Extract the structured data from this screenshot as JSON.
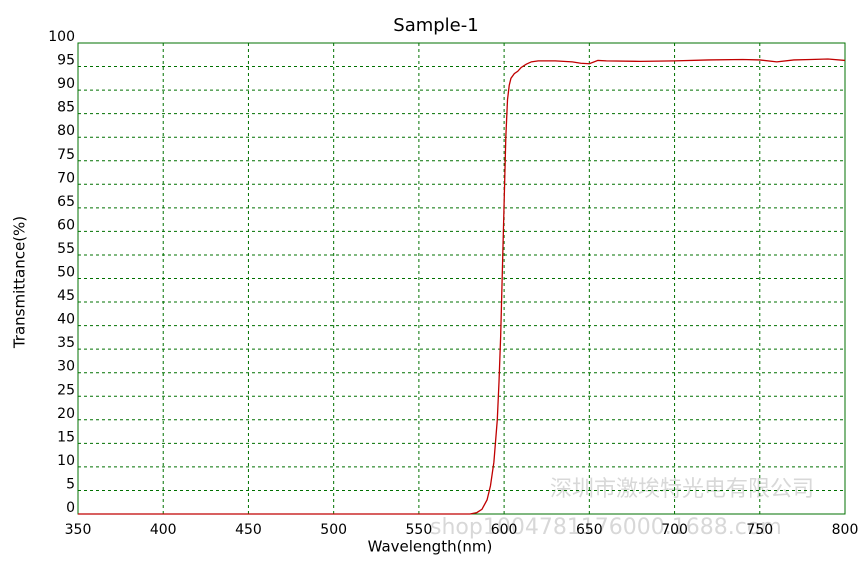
{
  "chart_data": {
    "type": "line",
    "title": "Sample-1",
    "x_label": "Wavelength(nm)",
    "y_label": "Transmittance(%)",
    "x": [
      350,
      400,
      450,
      500,
      550,
      580,
      584,
      587,
      590,
      592,
      594,
      596,
      597,
      598,
      599,
      600,
      601,
      602,
      603,
      604,
      606,
      608,
      610,
      613,
      616,
      620,
      630,
      640,
      645,
      650,
      655,
      660,
      680,
      700,
      720,
      740,
      750,
      760,
      770,
      780,
      790,
      800
    ],
    "series": [
      {
        "name": "Sample-1",
        "color": "#c00000",
        "values": [
          0,
          0,
          0,
          0,
          0,
          0,
          0.3,
          1,
          3,
          6,
          11,
          20,
          28,
          38,
          52,
          66,
          80,
          88,
          91,
          92.5,
          93.5,
          94,
          94.8,
          95.5,
          96,
          96.2,
          96.2,
          96,
          95.7,
          95.6,
          96.3,
          96.2,
          96.1,
          96.2,
          96.4,
          96.5,
          96.4,
          96,
          96.4,
          96.5,
          96.6,
          96.3
        ]
      }
    ],
    "xlim": [
      350,
      800
    ],
    "ylim": [
      0,
      100
    ],
    "xticks": [
      350,
      400,
      450,
      500,
      550,
      600,
      650,
      700,
      750,
      800
    ],
    "yticks": [
      0,
      5,
      10,
      15,
      20,
      25,
      30,
      35,
      40,
      45,
      50,
      55,
      60,
      65,
      70,
      75,
      80,
      85,
      90,
      95,
      100
    ],
    "grid": true,
    "grid_color": "#007000",
    "annotations": [
      "深圳市激埃特光电有限公司",
      "shop1004781176000.1688.com"
    ]
  }
}
